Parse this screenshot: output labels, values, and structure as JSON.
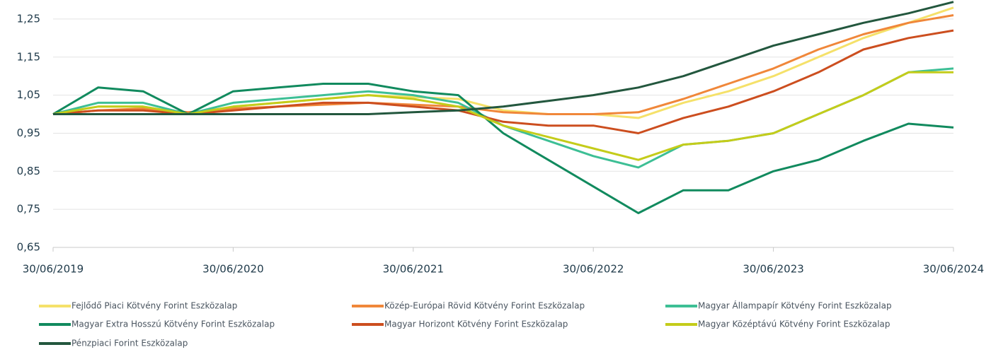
{
  "chart_data": {
    "type": "line",
    "x": [
      2019.5,
      2019.75,
      2020.0,
      2020.25,
      2020.5,
      2020.75,
      2021.0,
      2021.25,
      2021.5,
      2021.75,
      2022.0,
      2022.25,
      2022.5,
      2022.75,
      2023.0,
      2023.25,
      2023.5,
      2023.75,
      2024.0,
      2024.25,
      2024.5
    ],
    "xlim": [
      2019.5,
      2024.5
    ],
    "xticks": [
      {
        "value": 2019.5,
        "label": "30/06/2019"
      },
      {
        "value": 2020.5,
        "label": "30/06/2020"
      },
      {
        "value": 2021.5,
        "label": "30/06/2021"
      },
      {
        "value": 2022.5,
        "label": "30/06/2022"
      },
      {
        "value": 2023.5,
        "label": "30/06/2023"
      },
      {
        "value": 2024.5,
        "label": "30/06/2024"
      }
    ],
    "ylim": [
      0.65,
      1.3
    ],
    "yticks": [
      {
        "value": 0.65,
        "label": "0,65"
      },
      {
        "value": 0.75,
        "label": "0,75"
      },
      {
        "value": 0.85,
        "label": "0,85"
      },
      {
        "value": 0.95,
        "label": "0,95"
      },
      {
        "value": 1.05,
        "label": "1,05"
      },
      {
        "value": 1.15,
        "label": "1,15"
      },
      {
        "value": 1.25,
        "label": "1,25"
      }
    ],
    "grid": true,
    "legend": "bottom",
    "series": [
      {
        "name": "Fejlődő Piaci Kötvény Forint Eszközalap",
        "color": "#f5e16a",
        "values": [
          1.0,
          1.02,
          1.02,
          1.0,
          1.02,
          1.03,
          1.04,
          1.05,
          1.045,
          1.04,
          1.01,
          1.0,
          1.0,
          0.99,
          1.03,
          1.06,
          1.1,
          1.15,
          1.2,
          1.24,
          1.28
        ]
      },
      {
        "name": "Közép-Európai Rövid Kötvény Forint Eszközalap",
        "color": "#f0873a",
        "values": [
          1.0,
          1.01,
          1.015,
          1.005,
          1.015,
          1.02,
          1.025,
          1.03,
          1.025,
          1.02,
          1.005,
          1.0,
          1.0,
          1.005,
          1.04,
          1.08,
          1.12,
          1.17,
          1.21,
          1.24,
          1.26
        ]
      },
      {
        "name": "Magyar Állampapír Kötvény Forint Eszközalap",
        "color": "#3dbf95",
        "values": [
          1.0,
          1.03,
          1.03,
          1.0,
          1.03,
          1.04,
          1.05,
          1.06,
          1.05,
          1.03,
          0.97,
          0.93,
          0.89,
          0.86,
          0.92,
          0.93,
          0.95,
          1.0,
          1.05,
          1.11,
          1.12
        ]
      },
      {
        "name": "Magyar Extra Hosszú Kötvény Forint Eszközalap",
        "color": "#118a5e",
        "values": [
          1.0,
          1.07,
          1.06,
          1.0,
          1.06,
          1.07,
          1.08,
          1.08,
          1.06,
          1.05,
          0.95,
          0.88,
          0.81,
          0.74,
          0.8,
          0.8,
          0.85,
          0.88,
          0.93,
          0.975,
          0.965
        ]
      },
      {
        "name": "Magyar Horizont Kötvény Forint Eszközalap",
        "color": "#cc4e1f",
        "values": [
          1.0,
          1.01,
          1.01,
          1.0,
          1.01,
          1.02,
          1.03,
          1.03,
          1.02,
          1.01,
          0.98,
          0.97,
          0.97,
          0.95,
          0.99,
          1.02,
          1.06,
          1.11,
          1.17,
          1.2,
          1.22
        ]
      },
      {
        "name": "Magyar Középtávú Kötvény Forint Eszközalap",
        "color": "#c4cc1a",
        "values": [
          1.0,
          1.02,
          1.02,
          1.0,
          1.02,
          1.03,
          1.04,
          1.05,
          1.04,
          1.02,
          0.97,
          0.94,
          0.91,
          0.88,
          0.92,
          0.93,
          0.95,
          1.0,
          1.05,
          1.11,
          1.11
        ]
      },
      {
        "name": "Pénzpiaci Forint Eszközalap",
        "color": "#23573e",
        "values": [
          1.0,
          1.0,
          1.0,
          1.0,
          1.0,
          1.0,
          1.0,
          1.0,
          1.005,
          1.01,
          1.02,
          1.035,
          1.05,
          1.07,
          1.1,
          1.14,
          1.18,
          1.21,
          1.24,
          1.265,
          1.295
        ]
      }
    ]
  }
}
